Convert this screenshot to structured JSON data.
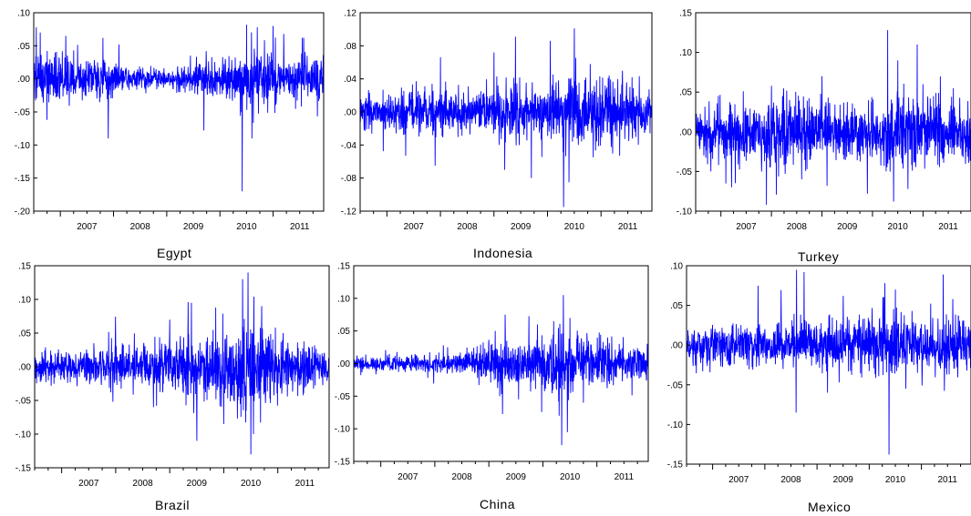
{
  "figure": {
    "line_color": "#0000ff",
    "panel_names": [
      "Egypt",
      "Indonesia",
      "Turkey",
      "Brazil",
      "China",
      "Mexico"
    ]
  },
  "chart_data": [
    {
      "type": "line",
      "title": "Egypt",
      "series": [
        {
          "name": "",
          "color": "#0000ff"
        }
      ],
      "ylim": [
        -0.2,
        0.1
      ],
      "yticks": [
        -0.2,
        -0.15,
        -0.1,
        -0.05,
        0.0,
        0.05,
        0.1
      ],
      "ytick_labels": [
        "-.20",
        "-.15",
        "-.10",
        "-.05",
        ".00",
        ".05",
        ".10"
      ],
      "xlim": [
        2006.5,
        2011.95
      ],
      "xticks": [
        2007,
        2008,
        2009,
        2010,
        2011
      ],
      "xtick_labels": [
        "2007",
        "2008",
        "2009",
        "2010",
        "2011"
      ],
      "noise": [
        [
          2006.5,
          0.018
        ],
        [
          2007.0,
          0.016
        ],
        [
          2008.0,
          0.014
        ],
        [
          2008.3,
          0.008
        ],
        [
          2009.0,
          0.007
        ],
        [
          2009.5,
          0.011
        ],
        [
          2010.0,
          0.014
        ],
        [
          2010.5,
          0.019
        ],
        [
          2011.0,
          0.018
        ],
        [
          2011.95,
          0.017
        ]
      ],
      "extremes": [
        [
          2006.55,
          0.078
        ],
        [
          2006.62,
          0.07
        ],
        [
          2006.75,
          -0.062
        ],
        [
          2007.1,
          0.065
        ],
        [
          2007.9,
          -0.09
        ],
        [
          2007.8,
          0.062
        ],
        [
          2008.1,
          0.052
        ],
        [
          2009.7,
          -0.078
        ],
        [
          2010.42,
          -0.17
        ],
        [
          2010.5,
          0.082
        ],
        [
          2010.6,
          -0.09
        ],
        [
          2010.7,
          0.078
        ],
        [
          2011.0,
          0.08
        ],
        [
          2011.2,
          0.068
        ],
        [
          2011.55,
          0.062
        ]
      ]
    },
    {
      "type": "line",
      "title": "Indonesia",
      "series": [
        {
          "name": "",
          "color": "#0000ff"
        }
      ],
      "ylim": [
        -0.12,
        0.12
      ],
      "yticks": [
        -0.12,
        -0.08,
        -0.04,
        0.0,
        0.04,
        0.08,
        0.12
      ],
      "ytick_labels": [
        "-.12",
        "-.08",
        "-.04",
        ".00",
        ".04",
        ".08",
        ".12"
      ],
      "xlim": [
        2006.5,
        2011.95
      ],
      "xticks": [
        2007,
        2008,
        2009,
        2010,
        2011
      ],
      "xtick_labels": [
        "2007",
        "2008",
        "2009",
        "2010",
        "2011"
      ],
      "noise": [
        [
          2006.5,
          0.01
        ],
        [
          2007.0,
          0.011
        ],
        [
          2007.5,
          0.013
        ],
        [
          2008.0,
          0.014
        ],
        [
          2008.5,
          0.012
        ],
        [
          2009.0,
          0.014
        ],
        [
          2009.3,
          0.02
        ],
        [
          2009.7,
          0.015
        ],
        [
          2010.0,
          0.016
        ],
        [
          2010.5,
          0.024
        ],
        [
          2011.0,
          0.02
        ],
        [
          2011.95,
          0.015
        ]
      ],
      "extremes": [
        [
          2007.35,
          -0.053
        ],
        [
          2007.9,
          -0.065
        ],
        [
          2008.0,
          0.066
        ],
        [
          2009.0,
          0.072
        ],
        [
          2009.2,
          -0.07
        ],
        [
          2009.4,
          0.091
        ],
        [
          2009.7,
          -0.08
        ],
        [
          2010.05,
          0.086
        ],
        [
          2010.3,
          -0.115
        ],
        [
          2010.4,
          -0.085
        ],
        [
          2010.5,
          0.101
        ],
        [
          2010.8,
          0.058
        ],
        [
          2011.4,
          0.05
        ]
      ]
    },
    {
      "type": "line",
      "title": "Turkey",
      "series": [
        {
          "name": "",
          "color": "#0000ff"
        }
      ],
      "ylim": [
        -0.1,
        0.15
      ],
      "yticks": [
        -0.1,
        -0.05,
        0.0,
        0.05,
        0.1,
        0.15
      ],
      "ytick_labels": [
        "-.10",
        "-.05",
        ".00",
        ".05",
        ".10",
        ".15"
      ],
      "xlim": [
        2006.5,
        2011.95
      ],
      "xticks": [
        2007,
        2008,
        2009,
        2010,
        2011
      ],
      "xtick_labels": [
        "2007",
        "2008",
        "2009",
        "2010",
        "2011"
      ],
      "noise": [
        [
          2006.5,
          0.015
        ],
        [
          2007.0,
          0.016
        ],
        [
          2007.6,
          0.018
        ],
        [
          2008.0,
          0.022
        ],
        [
          2008.5,
          0.02
        ],
        [
          2009.0,
          0.019
        ],
        [
          2009.5,
          0.015
        ],
        [
          2010.0,
          0.019
        ],
        [
          2010.5,
          0.024
        ],
        [
          2011.0,
          0.02
        ],
        [
          2011.95,
          0.018
        ]
      ],
      "extremes": [
        [
          2006.8,
          -0.05
        ],
        [
          2007.9,
          -0.092
        ],
        [
          2008.0,
          0.058
        ],
        [
          2008.3,
          0.052
        ],
        [
          2008.6,
          -0.06
        ],
        [
          2009.0,
          0.07
        ],
        [
          2009.1,
          -0.068
        ],
        [
          2009.9,
          -0.078
        ],
        [
          2010.3,
          0.128
        ],
        [
          2010.42,
          -0.088
        ],
        [
          2010.5,
          0.09
        ],
        [
          2010.7,
          -0.072
        ],
        [
          2011.0,
          0.06
        ],
        [
          2011.6,
          0.055
        ]
      ]
    },
    {
      "type": "line",
      "title": "Brazil",
      "series": [
        {
          "name": "",
          "color": "#0000ff"
        }
      ],
      "ylim": [
        -0.15,
        0.15
      ],
      "yticks": [
        -0.15,
        -0.1,
        -0.05,
        0.0,
        0.05,
        0.1,
        0.15
      ],
      "ytick_labels": [
        "-.15",
        "-.10",
        "-.05",
        ".00",
        ".05",
        ".10",
        ".15"
      ],
      "xlim": [
        2006.5,
        2011.95
      ],
      "xticks": [
        2007,
        2008,
        2009,
        2010,
        2011
      ],
      "xtick_labels": [
        "2007",
        "2008",
        "2009",
        "2010",
        "2011"
      ],
      "noise": [
        [
          2006.5,
          0.01
        ],
        [
          2007.0,
          0.011
        ],
        [
          2007.5,
          0.013
        ],
        [
          2008.0,
          0.015
        ],
        [
          2008.5,
          0.014
        ],
        [
          2009.0,
          0.02
        ],
        [
          2009.4,
          0.027
        ],
        [
          2009.7,
          0.023
        ],
        [
          2010.0,
          0.025
        ],
        [
          2010.3,
          0.037
        ],
        [
          2010.6,
          0.035
        ],
        [
          2011.0,
          0.02
        ],
        [
          2011.95,
          0.014
        ]
      ],
      "extremes": [
        [
          2007.95,
          -0.052
        ],
        [
          2008.7,
          -0.06
        ],
        [
          2009.0,
          0.07
        ],
        [
          2009.4,
          0.095
        ],
        [
          2009.5,
          -0.11
        ],
        [
          2009.85,
          0.088
        ],
        [
          2010.0,
          -0.085
        ],
        [
          2010.35,
          0.13
        ],
        [
          2010.45,
          0.14
        ],
        [
          2010.5,
          -0.13
        ],
        [
          2010.55,
          -0.1
        ],
        [
          2010.7,
          0.09
        ],
        [
          2011.1,
          0.05
        ]
      ]
    },
    {
      "type": "line",
      "title": "China",
      "series": [
        {
          "name": "",
          "color": "#0000ff"
        }
      ],
      "ylim": [
        -0.15,
        0.15
      ],
      "yticks": [
        -0.15,
        -0.1,
        -0.05,
        0.0,
        0.05,
        0.1,
        0.15
      ],
      "ytick_labels": [
        "-.15",
        "-.10",
        "-.05",
        ".00",
        ".05",
        ".10",
        ".15"
      ],
      "xlim": [
        2006.5,
        2011.95
      ],
      "xticks": [
        2007,
        2008,
        2009,
        2010,
        2011
      ],
      "xtick_labels": [
        "2007",
        "2008",
        "2009",
        "2010",
        "2011"
      ],
      "noise": [
        [
          2006.5,
          0.006
        ],
        [
          2007.0,
          0.006
        ],
        [
          2007.5,
          0.007
        ],
        [
          2008.0,
          0.007
        ],
        [
          2008.5,
          0.008
        ],
        [
          2009.0,
          0.016
        ],
        [
          2009.3,
          0.02
        ],
        [
          2009.7,
          0.016
        ],
        [
          2010.0,
          0.018
        ],
        [
          2010.3,
          0.027
        ],
        [
          2010.6,
          0.025
        ],
        [
          2011.0,
          0.017
        ],
        [
          2011.95,
          0.012
        ]
      ],
      "extremes": [
        [
          2009.2,
          -0.05
        ],
        [
          2009.3,
          0.075
        ],
        [
          2009.55,
          -0.055
        ],
        [
          2009.9,
          0.06
        ],
        [
          2010.2,
          0.065
        ],
        [
          2010.3,
          -0.08
        ],
        [
          2010.35,
          -0.125
        ],
        [
          2010.38,
          0.105
        ],
        [
          2010.5,
          0.07
        ],
        [
          2010.75,
          -0.06
        ],
        [
          2011.2,
          0.04
        ]
      ]
    },
    {
      "type": "line",
      "title": "Mexico",
      "series": [
        {
          "name": "",
          "color": "#0000ff"
        }
      ],
      "ylim": [
        -0.15,
        0.1
      ],
      "yticks": [
        -0.15,
        -0.1,
        -0.05,
        0.0,
        0.05,
        0.1
      ],
      "ytick_labels": [
        "-.15",
        "-.10",
        "-.05",
        ".00",
        ".05",
        ".10"
      ],
      "xlim": [
        2006.5,
        2011.95
      ],
      "xticks": [
        2007,
        2008,
        2009,
        2010,
        2011
      ],
      "xtick_labels": [
        "2007",
        "2008",
        "2009",
        "2010",
        "2011"
      ],
      "noise": [
        [
          2006.5,
          0.012
        ],
        [
          2007.0,
          0.012
        ],
        [
          2007.5,
          0.011
        ],
        [
          2008.0,
          0.013
        ],
        [
          2008.5,
          0.013
        ],
        [
          2009.0,
          0.015
        ],
        [
          2009.5,
          0.014
        ],
        [
          2010.0,
          0.016
        ],
        [
          2010.5,
          0.02
        ],
        [
          2011.0,
          0.016
        ],
        [
          2011.95,
          0.015
        ]
      ],
      "extremes": [
        [
          2008.6,
          -0.085
        ],
        [
          2008.75,
          0.092
        ],
        [
          2009.2,
          -0.06
        ],
        [
          2009.5,
          0.062
        ],
        [
          2010.3,
          0.078
        ],
        [
          2010.38,
          -0.138
        ],
        [
          2010.5,
          0.07
        ],
        [
          2010.7,
          -0.055
        ],
        [
          2011.6,
          0.058
        ]
      ]
    }
  ]
}
